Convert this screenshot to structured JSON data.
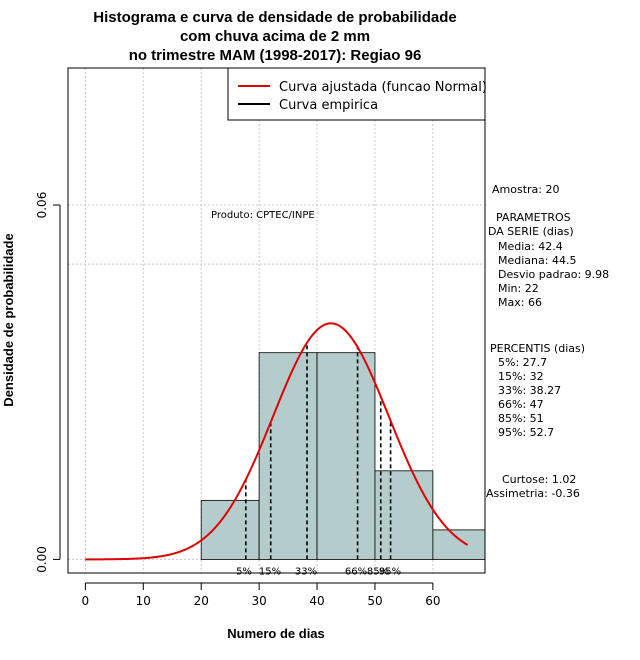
{
  "title_lines": [
    "Histograma e curva de densidade de probabilidade",
    "com chuva acima de 2 mm",
    "no trimestre MAM (1998-2017): Regiao 96"
  ],
  "produto": "Produto: CPTEC/INPE",
  "legend": [
    {
      "label": "Curva ajustada (funcao Normal)",
      "color": "#e00000"
    },
    {
      "label": "Curva empirica",
      "color": "#000000"
    }
  ],
  "stats": {
    "amostra": "Amostra: 20",
    "param_title_1": "PARAMETROS",
    "param_title_2": "DA SERIE (dias)",
    "params": [
      "Media: 42.4",
      "Mediana: 44.5",
      "Desvio padrao: 9.98",
      "Min: 22",
      "Max: 66"
    ],
    "percentis_title": "PERCENTIS (dias)",
    "percentis": [
      "5%: 27.7",
      "15%: 32",
      "33%: 38.27",
      "66%: 47",
      "85%: 51",
      "95%: 52.7"
    ],
    "curtose": "Curtose: 1.02",
    "assimetria": "Assimetria: -0.36"
  },
  "chart_data": {
    "type": "bar",
    "xlabel": "Numero de dias",
    "ylabel": "Densidade de probabilidade",
    "xlim": [
      -3,
      69
    ],
    "ylim": [
      -0.0023,
      0.0832
    ],
    "x_ticks": [
      0,
      10,
      20,
      30,
      40,
      50,
      60
    ],
    "y_ticks": [
      0.0,
      0.06
    ],
    "y_tick_labels": [
      "0.00",
      "0.06"
    ],
    "grid": true,
    "extra_hline": 0.05,
    "bins": [
      {
        "x0": 20,
        "x1": 30,
        "density": 0.01
      },
      {
        "x0": 30,
        "x1": 40,
        "density": 0.035
      },
      {
        "x0": 40,
        "x1": 50,
        "density": 0.035
      },
      {
        "x0": 50,
        "x1": 60,
        "density": 0.015
      },
      {
        "x0": 60,
        "x1": 70,
        "density": 0.005
      }
    ],
    "bar_color": "#b4cccc",
    "normal_fit": {
      "mean": 42.4,
      "sd": 9.98,
      "from": 0,
      "to": 66
    },
    "percentile_lines": [
      {
        "label": "5%",
        "x": 27.7
      },
      {
        "label": "15%",
        "x": 32
      },
      {
        "label": "33%",
        "x": 38.27
      },
      {
        "label": "66%",
        "x": 47
      },
      {
        "label": "85%",
        "x": 51
      },
      {
        "label": "95%",
        "x": 52.7
      }
    ],
    "legend_position": "top-right"
  }
}
